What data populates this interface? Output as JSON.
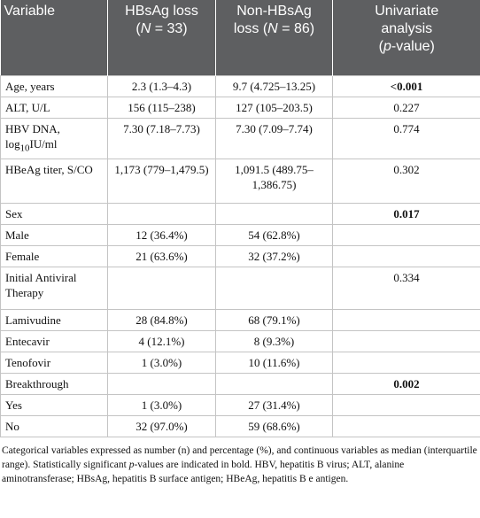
{
  "table": {
    "header": [
      "Variable",
      [
        "HBsAg loss",
        "(",
        "N",
        " = 33)"
      ],
      [
        "Non-HBsAg",
        "loss (",
        "N",
        " = 86)"
      ],
      [
        "Univariate",
        "analysis",
        "(",
        "p",
        "-value)"
      ]
    ],
    "rows": [
      [
        "Age, years",
        "2.3 (1.3–4.3)",
        "9.7 (4.725–13.25)",
        "<0.001"
      ],
      [
        "ALT, U/L",
        "156 (115–238)",
        "127 (105–203.5)",
        "0.227"
      ],
      [
        [
          "HBV DNA, log",
          "10",
          "IU/ml"
        ],
        "7.30 (7.18–7.73)",
        "7.30 (7.09–7.74)",
        "0.774"
      ],
      [
        "HBeAg titer, S/CO",
        "1,173 (779–1,479.5)",
        "1,091.5 (489.75–1,386.75)",
        "0.302"
      ],
      [
        "Sex",
        null,
        null,
        "0.017"
      ],
      [
        "Male",
        "12 (36.4%)",
        "54 (62.8%)",
        null
      ],
      [
        "Female",
        "21 (63.6%)",
        "32 (37.2%)",
        null
      ],
      [
        "Initial Antiviral Therapy",
        null,
        null,
        "0.334"
      ],
      [
        "Lamivudine",
        "28 (84.8%)",
        "68 (79.1%)",
        null
      ],
      [
        "Entecavir",
        "4 (12.1%)",
        "8 (9.3%)",
        null
      ],
      [
        "Tenofovir",
        "1 (3.0%)",
        "10 (11.6%)",
        null
      ],
      [
        "Breakthrough",
        null,
        null,
        "0.002"
      ],
      [
        "Yes",
        "1 (3.0%)",
        "27 (31.4%)",
        null
      ],
      [
        "No",
        "32 (97.0%)",
        "59 (68.6%)",
        null
      ]
    ],
    "footnote": [
      "Categorical variables expressed as number (n) and percentage (%), and continuous variables as median (interquartile range). Statistically significant ",
      "p",
      "-values are indicated in bold. HBV, hepatitis B virus; ALT, alanine aminotransferase; HBsAg, hepatitis B surface antigen; HBeAg, hepatitis B e antigen."
    ]
  }
}
